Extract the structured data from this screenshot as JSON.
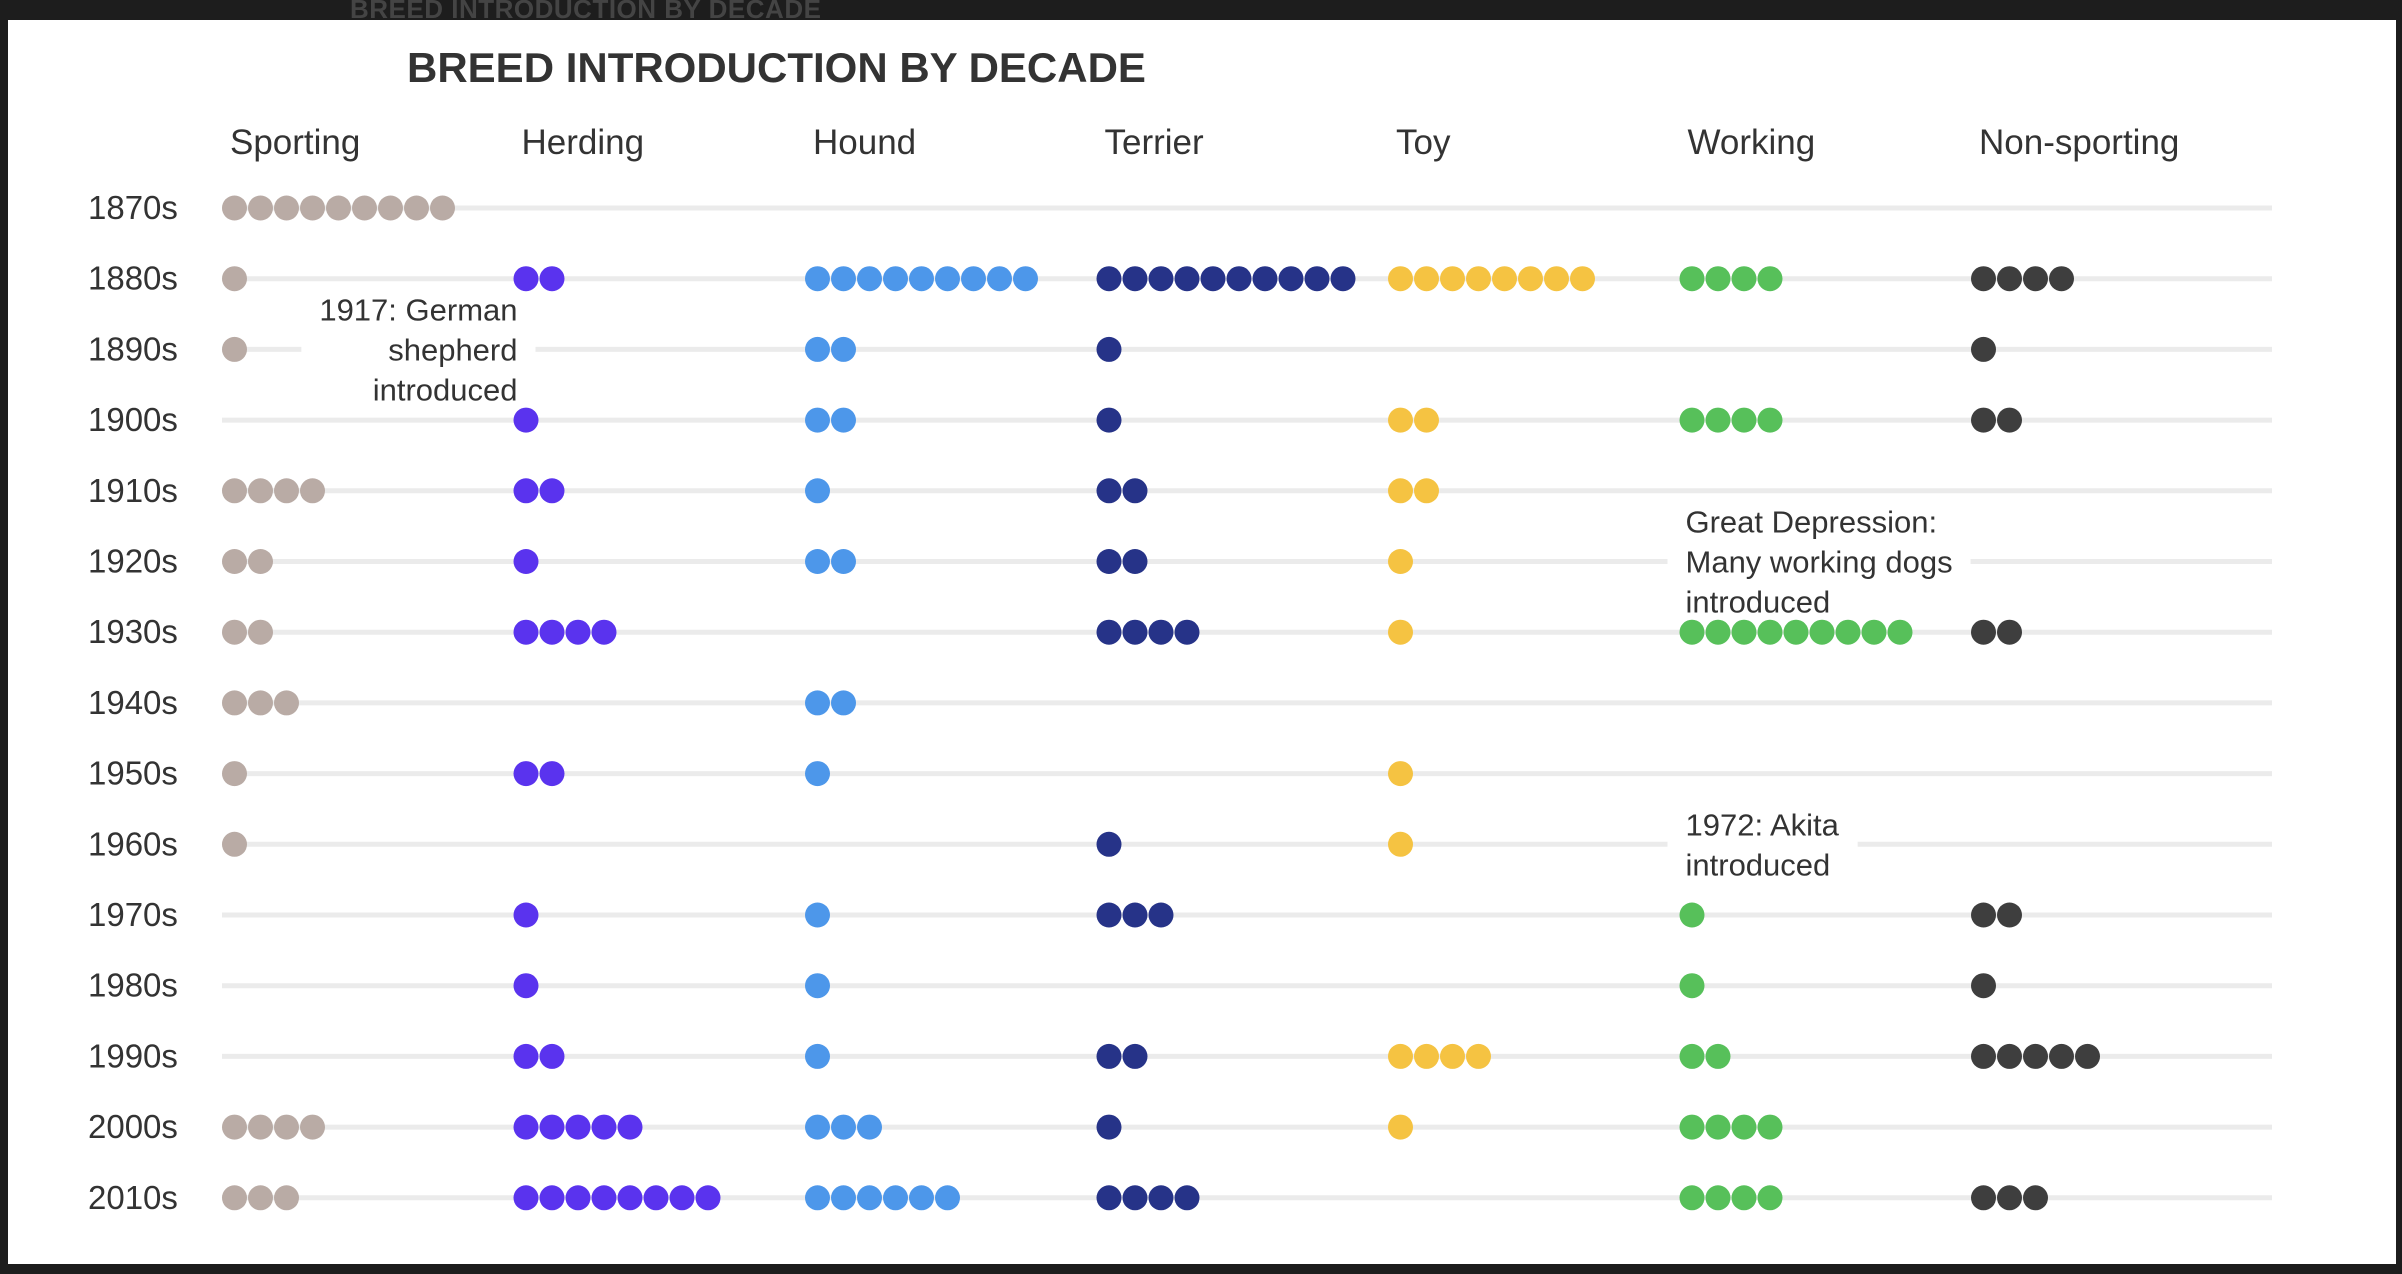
{
  "chart_data": {
    "type": "dot-matrix",
    "title": "BREED INTRODUCTION BY DECADE",
    "groups": [
      "Sporting",
      "Herding",
      "Hound",
      "Terrier",
      "Toy",
      "Working",
      "Non-sporting"
    ],
    "decades": [
      "1870s",
      "1880s",
      "1890s",
      "1900s",
      "1910s",
      "1920s",
      "1930s",
      "1940s",
      "1950s",
      "1960s",
      "1970s",
      "1980s",
      "1990s",
      "2000s",
      "2010s"
    ],
    "colors": [
      "#b9aba5",
      "#5a33ee",
      "#4d97ea",
      "#263388",
      "#f5c342",
      "#57c05a",
      "#3e3e3e"
    ],
    "counts": [
      [
        9,
        0,
        0,
        0,
        0,
        0,
        0
      ],
      [
        1,
        2,
        9,
        10,
        8,
        4,
        4
      ],
      [
        1,
        0,
        2,
        1,
        0,
        0,
        1
      ],
      [
        0,
        1,
        2,
        1,
        2,
        4,
        2
      ],
      [
        4,
        2,
        1,
        2,
        2,
        0,
        0
      ],
      [
        2,
        1,
        2,
        2,
        1,
        0,
        0
      ],
      [
        2,
        4,
        0,
        4,
        1,
        9,
        2
      ],
      [
        3,
        0,
        2,
        0,
        0,
        0,
        0
      ],
      [
        1,
        2,
        1,
        0,
        1,
        0,
        0
      ],
      [
        1,
        0,
        0,
        1,
        1,
        0,
        0
      ],
      [
        0,
        1,
        1,
        3,
        0,
        1,
        2
      ],
      [
        0,
        1,
        1,
        0,
        0,
        1,
        1
      ],
      [
        0,
        2,
        1,
        2,
        4,
        2,
        5
      ],
      [
        4,
        5,
        3,
        1,
        1,
        4,
        0
      ],
      [
        3,
        8,
        6,
        4,
        0,
        4,
        3
      ]
    ],
    "annotations": [
      {
        "lines": [
          "1917: German",
          "shepherd",
          "introduced"
        ],
        "group": "Herding",
        "decade": "1890s",
        "align": "end"
      },
      {
        "lines": [
          "Great Depression:",
          "Many working dogs",
          "introduced"
        ],
        "group": "Working",
        "decade": "1920s",
        "align": "start"
      },
      {
        "lines": [
          "1972: Akita",
          "introduced"
        ],
        "group": "Working",
        "decade": "1960s",
        "align": "start"
      }
    ],
    "grid": true,
    "legend": "none"
  },
  "ghost_title": "BREED INTRODUCTION BY DECADE"
}
